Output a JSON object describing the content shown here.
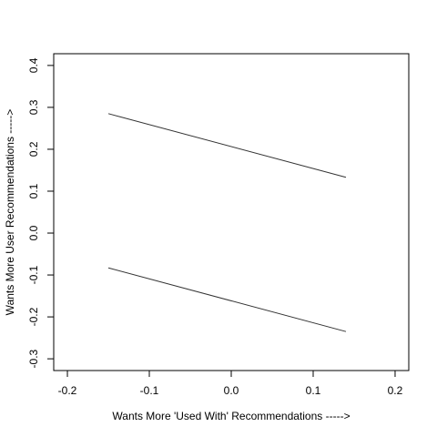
{
  "chart_data": {
    "type": "line",
    "xlabel": "Wants More 'Used With' Recommendations ----->",
    "ylabel": "Wants More User Recommendations ----->",
    "x": [
      -0.15,
      0.14
    ],
    "series": [
      {
        "color": "#333333",
        "values": [
          0.285,
          0.133
        ]
      },
      {
        "color": "#333333",
        "values": [
          -0.083,
          -0.235
        ]
      }
    ],
    "xlim": [
      -0.2167,
      0.2167
    ],
    "ylim": [
      -0.328,
      0.428
    ],
    "xticks": [
      -0.2,
      -0.1,
      {
        "value": 0,
        "label": "0.0"
      },
      0.1,
      0.2
    ],
    "yticks": [
      -0.3,
      -0.2,
      -0.1,
      {
        "value": 0,
        "label": "0.0"
      },
      0.1,
      0.2,
      0.3,
      0.4
    ],
    "grid": false
  }
}
